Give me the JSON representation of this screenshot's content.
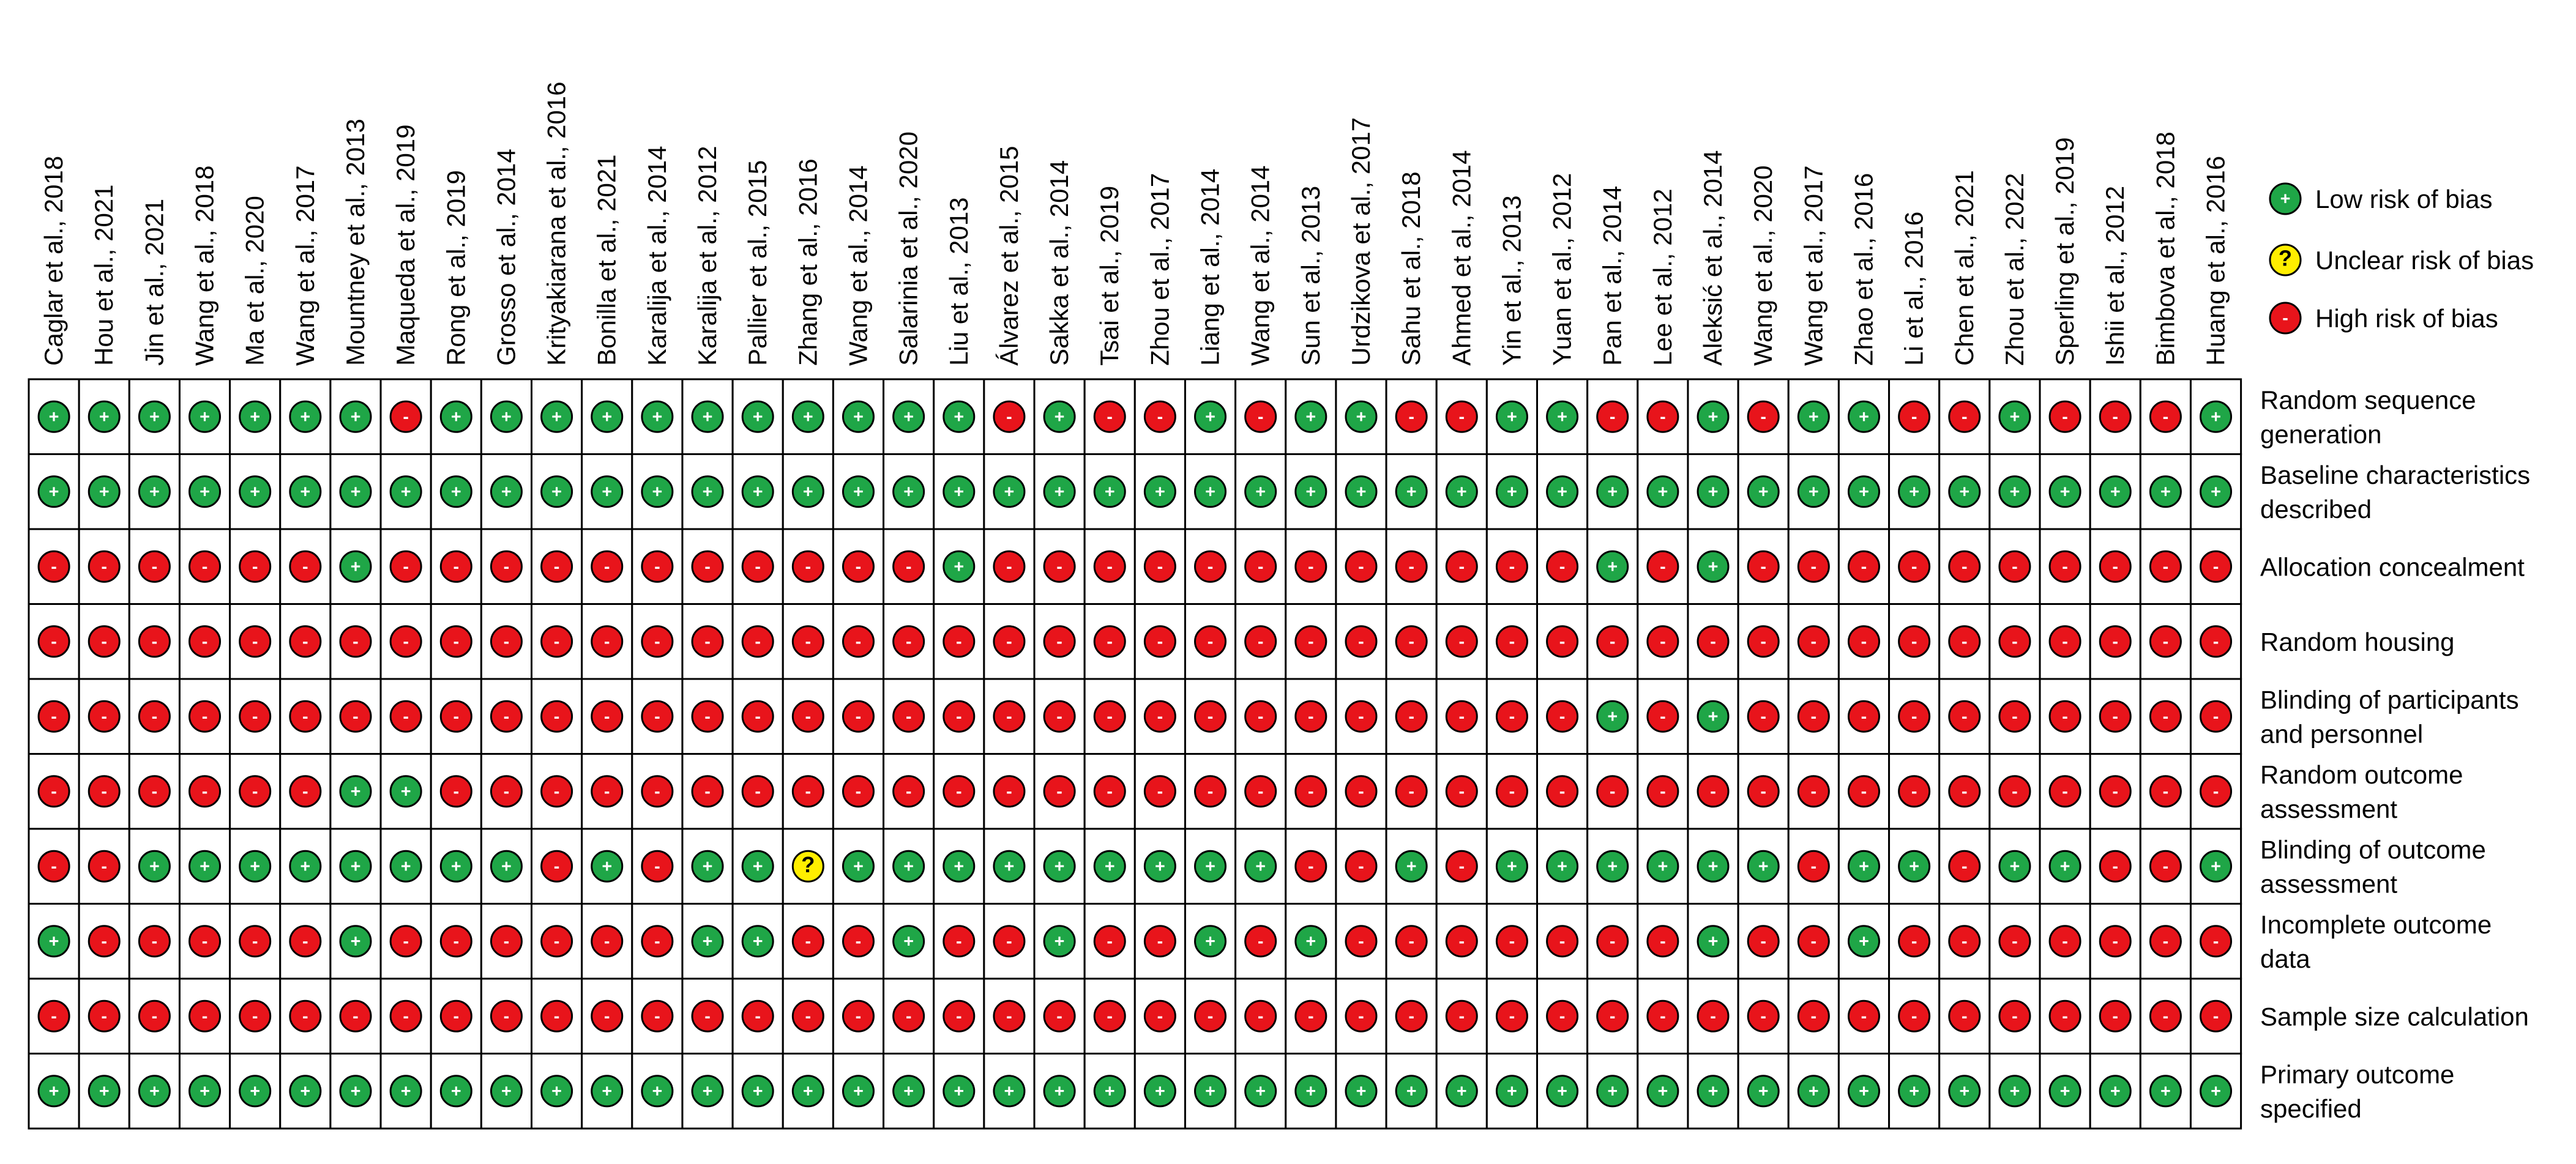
{
  "chart_data": {
    "type": "table",
    "studies": [
      "Caglar et al., 2018",
      "Hou et al., 2021",
      "Jin et al., 2021",
      "Wang et al., 2018",
      "Ma et al., 2020",
      "Wang et al., 2017",
      "Mountney et al., 2013",
      "Maqueda et al., 2019",
      "Rong et al., 2019",
      "Grosso et al., 2014",
      "Krityakiarana et al., 2016",
      "Bonilla et al., 2021",
      "Karalija et al., 2014",
      "Karalija et al., 2012",
      "Pallier et al., 2015",
      "Zhang et al., 2016",
      "Wang et al., 2014",
      "Salarinia et al., 2020",
      "Liu et al., 2013",
      "Álvarez et al., 2015",
      "Sakka et al., 2014",
      "Tsai et al., 2019",
      "Zhou et al., 2017",
      "Liang et al., 2014",
      "Wang et al., 2014",
      "Sun et al., 2013",
      "Urdzikova et al., 2017",
      "Sahu et al., 2018",
      "Ahmed et al., 2014",
      "Yin et al., 2013",
      "Yuan et al., 2012",
      "Pan et al., 2014",
      "Lee et al., 2012",
      "Aleksić et al., 2014",
      "Wang et al., 2020",
      "Wang et al., 2017",
      "Zhao et al., 2016",
      "Li et al., 2016",
      "Chen et al., 2021",
      "Zhou et al., 2022",
      "Sperling et al., 2019",
      "Ishii et al., 2012",
      "Bimbova et al., 2018",
      "Huang et al., 2016"
    ],
    "domains": [
      [
        "Random sequence",
        "generation"
      ],
      [
        "Baseline characteristics",
        "described"
      ],
      [
        "Allocation concealment"
      ],
      [
        "Random housing"
      ],
      [
        "Blinding of participants",
        "and personnel"
      ],
      [
        "Random outcome",
        "assessment"
      ],
      [
        "Blinding of outcome",
        "assessment"
      ],
      [
        "Incomplete outcome",
        "data"
      ],
      [
        "Sample size calculation"
      ],
      [
        "Primary outcome",
        "specified"
      ]
    ],
    "ratings": [
      "LLLLLLLHLLLLLLLLLLLHLHHLHLLHHLLHHLHLLHHLHHHL",
      "LLLLLLLLLLLLLLLLLLLLLLLLLLLLLLLLLLLLLLLLLLLL",
      "HHHHHHLHHHHHHHHHHHLHHHHHHHHHHHHLHLHHHHHHHHHH",
      "HHHHHHHHHHHHHHHHHHHHHHHHHHHHHHHHHHHHHHHHHHHH",
      "HHHHHHHHHHHHHHHHHHHHHHHHHHHHHHHLHLHHHHHHHHHH",
      "HHHHHHLLHHHHHHHHHHHHHHHHHHHHHHHHHHHHHHHHHHHH",
      "HHLLLLLLLLHLHLLULLLLLLLLLHHLHLLLLLLHLLHLLHHL",
      "LHHHHHLHHHHHHLLHHLHHLHHLHLHHHHHHHLHHLHHHHHHH",
      "HHHHHHHHHHHHHHHHHHHHHHHHHHHHHHHHHHHHHHHHHHHH",
      "LLLLLLLLLLLLLLLLLLLLLLLLLLLLLLLLLLLLLLLLLLLL"
    ],
    "legend": [
      {
        "key": "L",
        "label": "Low risk of bias",
        "symbol": "+",
        "color": "#1fa647"
      },
      {
        "key": "U",
        "label": "Unclear risk of bias",
        "symbol": "?",
        "color": "#ffee00"
      },
      {
        "key": "H",
        "label": "High risk of bias",
        "symbol": "-",
        "color": "#e8141b"
      }
    ],
    "legend_position": "top-right"
  }
}
